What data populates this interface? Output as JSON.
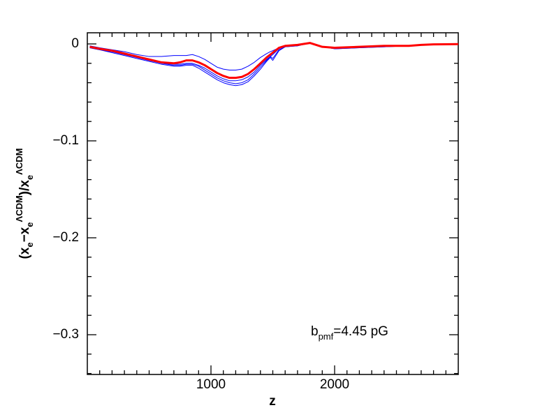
{
  "chart_data": {
    "type": "line",
    "xlabel": "z",
    "ylabel": [
      {
        "text": "(x"
      },
      {
        "text": "e",
        "shift": "sub"
      },
      {
        "text": "−x"
      },
      {
        "text": "e",
        "shift": "sub"
      },
      {
        "text": "ΛCDM",
        "shift": "sup"
      },
      {
        "text": ")/x"
      },
      {
        "text": "e",
        "shift": "sub"
      },
      {
        "text": "ΛCDM",
        "shift": "sup"
      }
    ],
    "annotation": [
      {
        "text": "b"
      },
      {
        "text": "pmf",
        "shift": "sub"
      },
      {
        "text": "=4.45  pG"
      }
    ],
    "annotation_color": "#ff0000",
    "xlim": [
      0,
      3000
    ],
    "ylim": [
      -0.341,
      0.0115
    ],
    "xticks": [
      1000,
      2000
    ],
    "yticks": [
      0,
      {
        "value": -0.1,
        "label": "−0.1"
      },
      {
        "value": -0.2,
        "label": "−0.2"
      },
      {
        "value": -0.3,
        "label": "−0.3"
      }
    ],
    "xminorticks": [
      100,
      200,
      300,
      400,
      500,
      600,
      700,
      800,
      900,
      1100,
      1200,
      1300,
      1400,
      1500,
      1600,
      1700,
      1800,
      1900,
      2100,
      2200,
      2300,
      2400,
      2500,
      2600,
      2700,
      2800,
      2900
    ],
    "yminorticks": [
      -0.02,
      -0.04,
      -0.06,
      -0.08,
      -0.12,
      -0.14,
      -0.16,
      -0.18,
      -0.22,
      -0.24,
      -0.26,
      -0.28,
      -0.32,
      -0.34
    ],
    "x": [
      20,
      100,
      200,
      300,
      400,
      500,
      600,
      700,
      750,
      800,
      850,
      900,
      950,
      1000,
      1050,
      1100,
      1150,
      1200,
      1250,
      1300,
      1350,
      1400,
      1450,
      1480,
      1500,
      1550,
      1600,
      1700,
      1800,
      1900,
      2000,
      2200,
      2400,
      2600,
      2700,
      2800,
      3000
    ],
    "series": [
      {
        "color": "#0000ff",
        "width": 1,
        "values": [
          -0.002,
          -0.004,
          -0.006,
          -0.008,
          -0.011,
          -0.013,
          -0.013,
          -0.012,
          -0.012,
          -0.012,
          -0.011,
          -0.013,
          -0.016,
          -0.02,
          -0.024,
          -0.026,
          -0.027,
          -0.027,
          -0.026,
          -0.023,
          -0.019,
          -0.014,
          -0.01,
          -0.008,
          -0.007,
          -0.004,
          -0.002,
          -0.001,
          0.001,
          -0.003,
          -0.004,
          -0.003,
          -0.002,
          -0.002,
          -0.001,
          -0.0005,
          -0.0002
        ]
      },
      {
        "color": "#0000ff",
        "width": 1,
        "values": [
          -0.003,
          -0.005,
          -0.008,
          -0.011,
          -0.014,
          -0.017,
          -0.02,
          -0.021,
          -0.021,
          -0.02,
          -0.02,
          -0.022,
          -0.025,
          -0.029,
          -0.033,
          -0.036,
          -0.038,
          -0.038,
          -0.037,
          -0.034,
          -0.029,
          -0.022,
          -0.016,
          -0.013,
          -0.011,
          -0.005,
          -0.002,
          -0.001,
          0.001,
          -0.003,
          -0.004,
          -0.003,
          -0.002,
          -0.002,
          -0.001,
          -0.0005,
          -0.0002
        ]
      },
      {
        "color": "#0000ff",
        "width": 1,
        "values": [
          -0.004,
          -0.006,
          -0.008,
          -0.011,
          -0.014,
          -0.017,
          -0.02,
          -0.022,
          -0.022,
          -0.021,
          -0.021,
          -0.023,
          -0.027,
          -0.031,
          -0.035,
          -0.038,
          -0.04,
          -0.041,
          -0.04,
          -0.037,
          -0.031,
          -0.024,
          -0.017,
          -0.013,
          -0.015,
          -0.006,
          -0.003,
          -0.002,
          0.001,
          -0.003,
          -0.005,
          -0.004,
          -0.003,
          -0.002,
          -0.001,
          -0.0005,
          -0.0002
        ]
      },
      {
        "color": "#0000ff",
        "width": 1,
        "values": [
          -0.004,
          -0.006,
          -0.009,
          -0.012,
          -0.015,
          -0.018,
          -0.021,
          -0.023,
          -0.023,
          -0.022,
          -0.022,
          -0.025,
          -0.029,
          -0.033,
          -0.037,
          -0.04,
          -0.042,
          -0.043,
          -0.042,
          -0.039,
          -0.033,
          -0.026,
          -0.018,
          -0.014,
          -0.017,
          -0.007,
          -0.003,
          -0.002,
          0.001,
          -0.003,
          -0.005,
          -0.004,
          -0.003,
          -0.002,
          -0.001,
          -0.0005,
          -0.0002
        ]
      },
      {
        "color": "#ff0000",
        "width": 3,
        "values": [
          -0.003,
          -0.005,
          -0.007,
          -0.01,
          -0.013,
          -0.016,
          -0.019,
          -0.02,
          -0.019,
          -0.017,
          -0.017,
          -0.019,
          -0.022,
          -0.026,
          -0.03,
          -0.033,
          -0.035,
          -0.035,
          -0.034,
          -0.031,
          -0.026,
          -0.02,
          -0.014,
          -0.011,
          -0.009,
          -0.004,
          -0.002,
          -0.001,
          0.001,
          -0.003,
          -0.004,
          -0.003,
          -0.002,
          -0.002,
          -0.001,
          -0.0005,
          -0.0002
        ]
      }
    ]
  }
}
